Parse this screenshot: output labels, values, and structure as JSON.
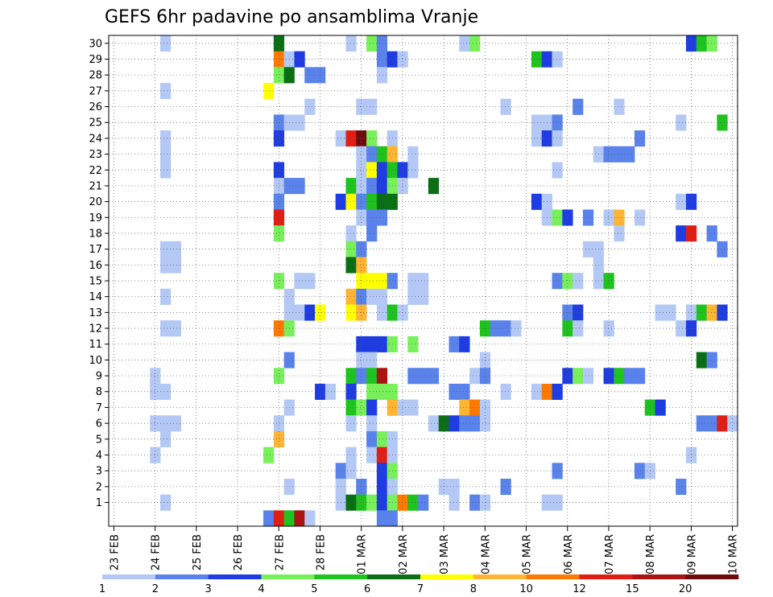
{
  "chart_data": {
    "type": "heatmap",
    "title": "GEFS 6hr padavine po ansamblima Vranje",
    "xlabel": "",
    "ylabel": "",
    "y_ticks": [
      1,
      2,
      3,
      4,
      5,
      6,
      7,
      8,
      9,
      10,
      11,
      12,
      13,
      14,
      15,
      16,
      17,
      18,
      19,
      20,
      21,
      22,
      23,
      24,
      25,
      26,
      27,
      28,
      29,
      30
    ],
    "ylim": [
      0,
      30
    ],
    "x_ticks": [
      {
        "label": "23 FEB",
        "col": 0
      },
      {
        "label": "24 FEB",
        "col": 4
      },
      {
        "label": "25 FEB",
        "col": 8
      },
      {
        "label": "26 FEB",
        "col": 12
      },
      {
        "label": "27 FEB",
        "col": 16
      },
      {
        "label": "28 FEB",
        "col": 20
      },
      {
        "label": "01 MAR",
        "col": 24
      },
      {
        "label": "02 MAR",
        "col": 28
      },
      {
        "label": "03 MAR",
        "col": 32
      },
      {
        "label": "04 MAR",
        "col": 36
      },
      {
        "label": "05 MAR",
        "col": 40
      },
      {
        "label": "06 MAR",
        "col": 44
      },
      {
        "label": "07 MAR",
        "col": 48
      },
      {
        "label": "08 MAR",
        "col": 52
      },
      {
        "label": "09 MAR",
        "col": 56
      },
      {
        "label": "10 MAR",
        "col": 60
      }
    ],
    "time_step_hours": 6,
    "grid": true,
    "legend": {
      "placement": "bottom",
      "levels": [
        "1",
        "2",
        "3",
        "4",
        "5",
        "6",
        "7",
        "8",
        "10",
        "12",
        "15",
        "20"
      ],
      "colors": [
        "#b4c8f5",
        "#5a82eb",
        "#1e3ce1",
        "#78f05a",
        "#1ec31e",
        "#0a6e14",
        "#ffff00",
        "#ffb432",
        "#ff7800",
        "#e11e14",
        "#aa1414",
        "#6e0a0a"
      ]
    },
    "cells": [
      [
        30,
        5,
        0
      ],
      [
        30,
        16,
        5
      ],
      [
        30,
        23,
        0
      ],
      [
        30,
        25,
        3
      ],
      [
        30,
        26,
        1
      ],
      [
        30,
        34,
        0
      ],
      [
        30,
        35,
        3
      ],
      [
        30,
        56,
        2
      ],
      [
        30,
        57,
        4
      ],
      [
        30,
        58,
        3
      ],
      [
        29,
        16,
        8
      ],
      [
        29,
        17,
        0
      ],
      [
        29,
        18,
        2
      ],
      [
        29,
        26,
        1
      ],
      [
        29,
        27,
        2
      ],
      [
        29,
        28,
        0
      ],
      [
        29,
        41,
        4
      ],
      [
        29,
        42,
        2
      ],
      [
        29,
        43,
        0
      ],
      [
        28,
        16,
        3
      ],
      [
        28,
        17,
        5
      ],
      [
        28,
        19,
        1
      ],
      [
        28,
        20,
        1
      ],
      [
        28,
        26,
        0
      ],
      [
        27,
        5,
        0
      ],
      [
        27,
        15,
        6
      ],
      [
        26,
        19,
        0
      ],
      [
        26,
        24,
        0
      ],
      [
        26,
        25,
        0
      ],
      [
        26,
        38,
        0
      ],
      [
        26,
        45,
        1
      ],
      [
        26,
        49,
        0
      ],
      [
        25,
        16,
        1
      ],
      [
        25,
        17,
        0
      ],
      [
        25,
        18,
        0
      ],
      [
        25,
        41,
        0
      ],
      [
        25,
        42,
        0
      ],
      [
        25,
        43,
        1
      ],
      [
        25,
        55,
        0
      ],
      [
        25,
        59,
        4
      ],
      [
        24,
        5,
        0
      ],
      [
        24,
        16,
        2
      ],
      [
        24,
        22,
        0
      ],
      [
        24,
        23,
        9
      ],
      [
        24,
        24,
        11
      ],
      [
        24,
        25,
        3
      ],
      [
        24,
        27,
        0
      ],
      [
        24,
        41,
        0
      ],
      [
        24,
        42,
        2
      ],
      [
        24,
        43,
        0
      ],
      [
        24,
        51,
        1
      ],
      [
        23,
        5,
        0
      ],
      [
        23,
        24,
        0
      ],
      [
        23,
        25,
        1
      ],
      [
        23,
        26,
        4
      ],
      [
        23,
        27,
        7
      ],
      [
        23,
        29,
        0
      ],
      [
        23,
        47,
        0
      ],
      [
        23,
        48,
        1
      ],
      [
        23,
        49,
        1
      ],
      [
        23,
        50,
        1
      ],
      [
        22,
        5,
        0
      ],
      [
        22,
        16,
        2
      ],
      [
        22,
        24,
        0
      ],
      [
        22,
        25,
        6
      ],
      [
        22,
        26,
        2
      ],
      [
        22,
        27,
        4
      ],
      [
        22,
        28,
        2
      ],
      [
        22,
        29,
        0
      ],
      [
        22,
        43,
        0
      ],
      [
        21,
        16,
        0
      ],
      [
        21,
        17,
        1
      ],
      [
        21,
        18,
        1
      ],
      [
        21,
        23,
        4
      ],
      [
        21,
        24,
        0
      ],
      [
        21,
        25,
        1
      ],
      [
        21,
        26,
        2
      ],
      [
        21,
        27,
        3
      ],
      [
        21,
        28,
        0
      ],
      [
        21,
        31,
        5
      ],
      [
        20,
        16,
        1
      ],
      [
        20,
        22,
        2
      ],
      [
        20,
        23,
        6
      ],
      [
        20,
        24,
        1
      ],
      [
        20,
        25,
        4
      ],
      [
        20,
        26,
        5
      ],
      [
        20,
        27,
        5
      ],
      [
        20,
        41,
        2
      ],
      [
        20,
        42,
        0
      ],
      [
        20,
        55,
        0
      ],
      [
        20,
        56,
        2
      ],
      [
        19,
        16,
        9
      ],
      [
        19,
        24,
        0
      ],
      [
        19,
        25,
        1
      ],
      [
        19,
        26,
        1
      ],
      [
        19,
        42,
        0
      ],
      [
        19,
        43,
        3
      ],
      [
        19,
        44,
        2
      ],
      [
        19,
        46,
        1
      ],
      [
        19,
        48,
        0
      ],
      [
        19,
        49,
        7
      ],
      [
        19,
        51,
        0
      ],
      [
        18,
        16,
        3
      ],
      [
        18,
        23,
        0
      ],
      [
        18,
        25,
        1
      ],
      [
        18,
        49,
        0
      ],
      [
        18,
        55,
        2
      ],
      [
        18,
        56,
        9
      ],
      [
        18,
        58,
        1
      ],
      [
        17,
        5,
        0
      ],
      [
        17,
        6,
        0
      ],
      [
        17,
        23,
        3
      ],
      [
        17,
        24,
        1
      ],
      [
        17,
        46,
        0
      ],
      [
        17,
        47,
        0
      ],
      [
        17,
        59,
        1
      ],
      [
        16,
        5,
        0
      ],
      [
        16,
        6,
        0
      ],
      [
        16,
        23,
        5
      ],
      [
        16,
        24,
        7
      ],
      [
        16,
        47,
        0
      ],
      [
        15,
        16,
        3
      ],
      [
        15,
        18,
        0
      ],
      [
        15,
        19,
        0
      ],
      [
        15,
        24,
        6
      ],
      [
        15,
        25,
        6
      ],
      [
        15,
        26,
        6
      ],
      [
        15,
        27,
        1
      ],
      [
        15,
        29,
        0
      ],
      [
        15,
        30,
        0
      ],
      [
        15,
        43,
        1
      ],
      [
        15,
        44,
        3
      ],
      [
        15,
        45,
        0
      ],
      [
        15,
        47,
        0
      ],
      [
        15,
        48,
        4
      ],
      [
        14,
        5,
        0
      ],
      [
        14,
        17,
        0
      ],
      [
        14,
        23,
        7
      ],
      [
        14,
        24,
        1
      ],
      [
        14,
        25,
        0
      ],
      [
        14,
        26,
        0
      ],
      [
        14,
        29,
        0
      ],
      [
        14,
        30,
        0
      ],
      [
        13,
        17,
        0
      ],
      [
        13,
        18,
        0
      ],
      [
        13,
        19,
        2
      ],
      [
        13,
        20,
        6
      ],
      [
        13,
        23,
        6
      ],
      [
        13,
        24,
        7
      ],
      [
        13,
        26,
        0
      ],
      [
        13,
        27,
        4
      ],
      [
        13,
        28,
        0
      ],
      [
        13,
        44,
        1
      ],
      [
        13,
        45,
        2
      ],
      [
        13,
        53,
        0
      ],
      [
        13,
        54,
        0
      ],
      [
        13,
        56,
        0
      ],
      [
        13,
        57,
        4
      ],
      [
        13,
        58,
        7
      ],
      [
        13,
        59,
        2
      ],
      [
        12,
        5,
        0
      ],
      [
        12,
        6,
        0
      ],
      [
        12,
        16,
        8
      ],
      [
        12,
        17,
        3
      ],
      [
        12,
        36,
        4
      ],
      [
        12,
        37,
        1
      ],
      [
        12,
        38,
        1
      ],
      [
        12,
        39,
        0
      ],
      [
        12,
        44,
        4
      ],
      [
        12,
        45,
        0
      ],
      [
        12,
        48,
        0
      ],
      [
        12,
        55,
        0
      ],
      [
        12,
        56,
        2
      ],
      [
        11,
        24,
        2
      ],
      [
        11,
        25,
        2
      ],
      [
        11,
        26,
        2
      ],
      [
        11,
        27,
        3
      ],
      [
        11,
        29,
        3
      ],
      [
        11,
        33,
        1
      ],
      [
        11,
        34,
        2
      ],
      [
        10,
        17,
        1
      ],
      [
        10,
        24,
        0
      ],
      [
        10,
        25,
        0
      ],
      [
        10,
        36,
        0
      ],
      [
        10,
        57,
        5
      ],
      [
        10,
        58,
        1
      ],
      [
        9,
        4,
        0
      ],
      [
        9,
        16,
        3
      ],
      [
        9,
        23,
        4
      ],
      [
        9,
        24,
        1
      ],
      [
        9,
        25,
        4
      ],
      [
        9,
        26,
        10
      ],
      [
        9,
        29,
        1
      ],
      [
        9,
        30,
        1
      ],
      [
        9,
        31,
        1
      ],
      [
        9,
        35,
        0
      ],
      [
        9,
        36,
        1
      ],
      [
        9,
        44,
        2
      ],
      [
        9,
        45,
        3
      ],
      [
        9,
        46,
        0
      ],
      [
        9,
        48,
        2
      ],
      [
        9,
        49,
        4
      ],
      [
        9,
        50,
        1
      ],
      [
        9,
        51,
        1
      ],
      [
        8,
        4,
        0
      ],
      [
        8,
        5,
        0
      ],
      [
        8,
        20,
        2
      ],
      [
        8,
        21,
        0
      ],
      [
        8,
        23,
        2
      ],
      [
        8,
        25,
        3
      ],
      [
        8,
        26,
        3
      ],
      [
        8,
        27,
        3
      ],
      [
        8,
        33,
        1
      ],
      [
        8,
        34,
        1
      ],
      [
        8,
        38,
        0
      ],
      [
        8,
        41,
        0
      ],
      [
        8,
        42,
        8
      ],
      [
        8,
        43,
        2
      ],
      [
        7,
        17,
        0
      ],
      [
        7,
        23,
        4
      ],
      [
        7,
        24,
        3
      ],
      [
        7,
        25,
        2
      ],
      [
        7,
        27,
        7
      ],
      [
        7,
        28,
        0
      ],
      [
        7,
        29,
        0
      ],
      [
        7,
        34,
        7
      ],
      [
        7,
        35,
        8
      ],
      [
        7,
        36,
        0
      ],
      [
        7,
        52,
        4
      ],
      [
        7,
        53,
        2
      ],
      [
        6,
        4,
        0
      ],
      [
        6,
        5,
        0
      ],
      [
        6,
        6,
        0
      ],
      [
        6,
        16,
        0
      ],
      [
        6,
        23,
        0
      ],
      [
        6,
        25,
        0
      ],
      [
        6,
        31,
        0
      ],
      [
        6,
        32,
        5
      ],
      [
        6,
        33,
        2
      ],
      [
        6,
        34,
        1
      ],
      [
        6,
        35,
        1
      ],
      [
        6,
        36,
        0
      ],
      [
        6,
        57,
        1
      ],
      [
        6,
        58,
        1
      ],
      [
        6,
        59,
        9
      ],
      [
        6,
        60,
        0
      ],
      [
        5,
        5,
        0
      ],
      [
        5,
        16,
        7
      ],
      [
        5,
        25,
        1
      ],
      [
        5,
        26,
        3
      ],
      [
        5,
        27,
        0
      ],
      [
        4,
        4,
        0
      ],
      [
        4,
        15,
        3
      ],
      [
        4,
        23,
        0
      ],
      [
        4,
        25,
        0
      ],
      [
        4,
        26,
        9
      ],
      [
        4,
        27,
        0
      ],
      [
        4,
        56,
        0
      ],
      [
        3,
        22,
        1
      ],
      [
        3,
        23,
        0
      ],
      [
        3,
        26,
        2
      ],
      [
        3,
        27,
        3
      ],
      [
        3,
        43,
        1
      ],
      [
        3,
        51,
        1
      ],
      [
        3,
        52,
        0
      ],
      [
        2,
        17,
        0
      ],
      [
        2,
        22,
        0
      ],
      [
        2,
        24,
        1
      ],
      [
        2,
        26,
        2
      ],
      [
        2,
        27,
        0
      ],
      [
        2,
        32,
        0
      ],
      [
        2,
        33,
        0
      ],
      [
        2,
        38,
        1
      ],
      [
        2,
        55,
        1
      ],
      [
        1,
        5,
        0
      ],
      [
        1,
        22,
        0
      ],
      [
        1,
        23,
        5
      ],
      [
        1,
        24,
        4
      ],
      [
        1,
        25,
        3
      ],
      [
        1,
        26,
        2
      ],
      [
        1,
        27,
        3
      ],
      [
        1,
        28,
        8
      ],
      [
        1,
        29,
        4
      ],
      [
        1,
        30,
        1
      ],
      [
        1,
        33,
        0
      ],
      [
        1,
        35,
        1
      ],
      [
        1,
        36,
        0
      ],
      [
        1,
        42,
        0
      ],
      [
        1,
        43,
        0
      ],
      [
        0,
        15,
        1
      ],
      [
        0,
        16,
        9
      ],
      [
        0,
        17,
        4
      ],
      [
        0,
        18,
        10
      ],
      [
        0,
        19,
        0
      ],
      [
        0,
        26,
        1
      ],
      [
        0,
        27,
        1
      ]
    ]
  }
}
